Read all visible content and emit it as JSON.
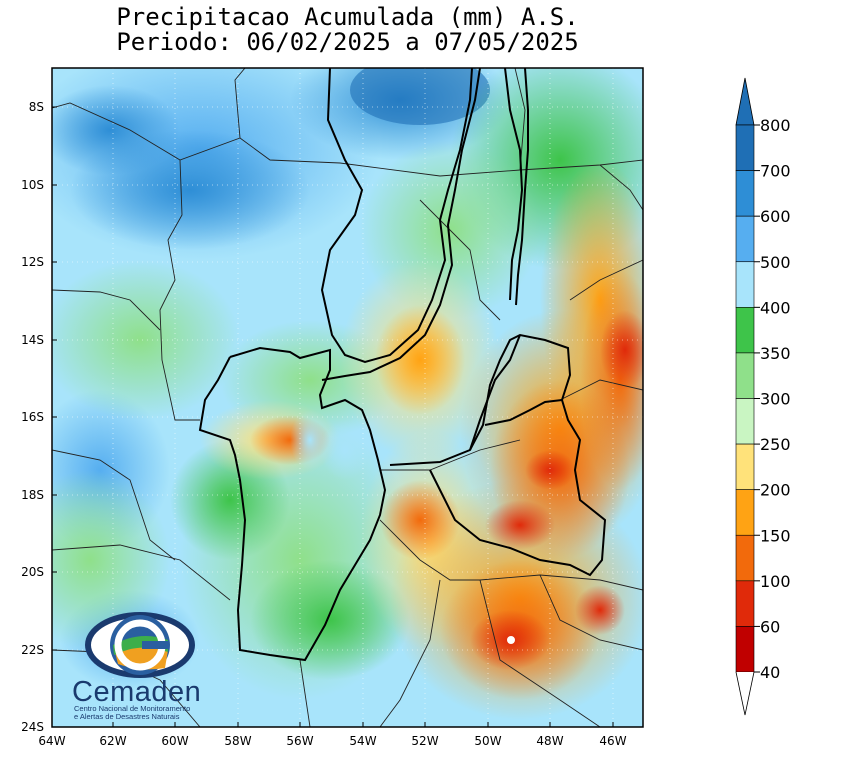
{
  "title": {
    "line1": "Precipitacao Acumulada (mm) A.S.",
    "line2": "Periodo: 06/02/2025 a 07/05/2025"
  },
  "axes": {
    "lat_labels": [
      "8S",
      "10S",
      "12S",
      "14S",
      "16S",
      "18S",
      "20S",
      "22S",
      "24S"
    ],
    "lon_labels": [
      "64W",
      "62W",
      "60W",
      "58W",
      "56W",
      "54W",
      "52W",
      "50W",
      "48W",
      "46W"
    ]
  },
  "colorbar": {
    "labels": [
      "800",
      "700",
      "600",
      "500",
      "400",
      "350",
      "300",
      "250",
      "200",
      "150",
      "100",
      "60",
      "40"
    ],
    "colors": [
      "#1f6fb5",
      "#2e8ed6",
      "#56aef0",
      "#a8e4fb",
      "#3ec44a",
      "#8fe08a",
      "#c9f5c2",
      "#ffe27a",
      "#ffa314",
      "#f26a0c",
      "#e02a0a",
      "#c00000"
    ]
  },
  "logo": {
    "name": "Cemaden",
    "subtitle_line1": "Centro Nacional de Monitoramento",
    "subtitle_line2": "e Alertas de Desastres Naturais"
  }
}
